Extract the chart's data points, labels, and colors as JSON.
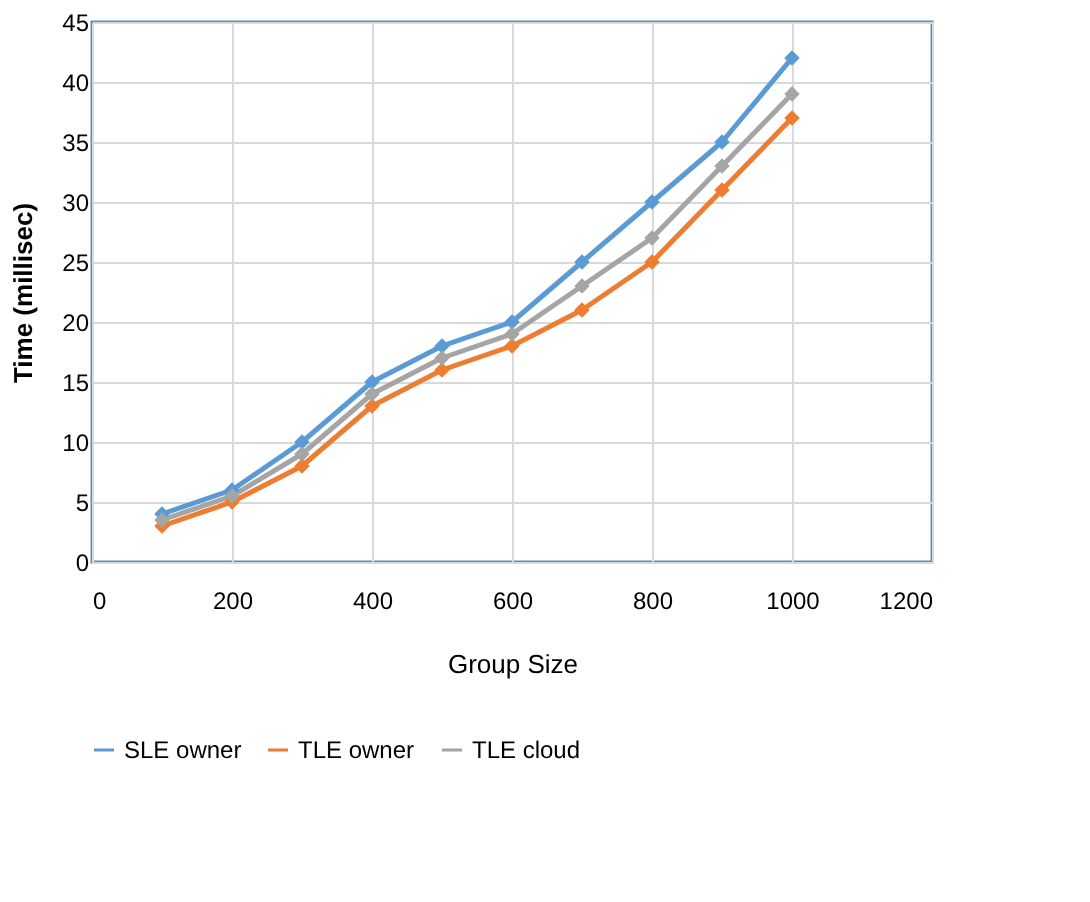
{
  "chart_data": {
    "type": "line",
    "xlabel": "Group Size",
    "ylabel": "Time (millisec)",
    "x": [
      100,
      200,
      300,
      400,
      500,
      600,
      700,
      800,
      900,
      1000
    ],
    "xlim": [
      0,
      1200
    ],
    "xticks": [
      0,
      200,
      400,
      600,
      800,
      1000,
      1200
    ],
    "ylim": [
      0,
      45
    ],
    "yticks": [
      0,
      5,
      10,
      15,
      20,
      25,
      30,
      35,
      40,
      45
    ],
    "grid": true,
    "legend": "bottom",
    "marker": "diamond",
    "line_style": "solid",
    "series": [
      {
        "name": "SLE owner",
        "color": "#5b9bd5",
        "values": [
          4,
          6,
          10,
          15,
          18,
          20,
          25,
          30,
          35,
          42
        ]
      },
      {
        "name": "TLE owner",
        "color": "#ed7d31",
        "values": [
          3,
          5,
          8,
          13,
          16,
          18,
          21,
          25,
          31,
          37
        ]
      },
      {
        "name": "TLE cloud",
        "color": "#a5a5a5",
        "values": [
          3.5,
          5.5,
          9,
          14,
          17,
          19,
          23,
          27,
          33,
          39
        ]
      }
    ]
  }
}
